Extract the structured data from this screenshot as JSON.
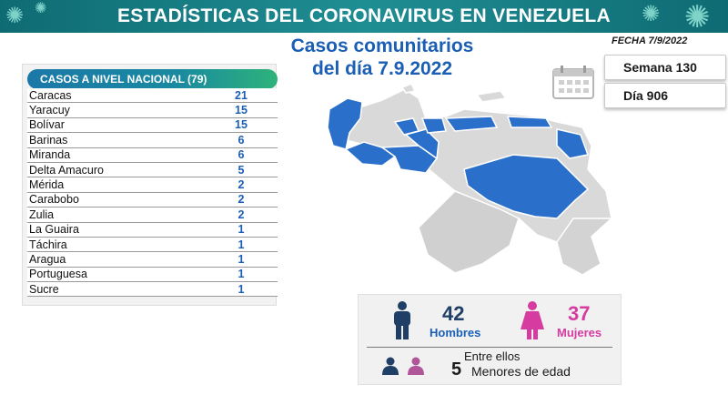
{
  "header": {
    "title": "ESTADÍSTICAS DEL CORONAVIRUS EN VENEZUELA"
  },
  "subtitle": {
    "line1": "Casos comunitarios",
    "line2": "del día 7.9.2022"
  },
  "fecha": "FECHA 7/9/2022",
  "semana": "Semana 130",
  "dia": "Día 906",
  "table": {
    "header": "CASOS A NIVEL NACIONAL  (79)",
    "rows": [
      {
        "name": "Caracas",
        "value": "21"
      },
      {
        "name": "Yaracuy",
        "value": "15"
      },
      {
        "name": "Bolívar",
        "value": "15"
      },
      {
        "name": "Barinas",
        "value": "6"
      },
      {
        "name": "Miranda",
        "value": "6"
      },
      {
        "name": "Delta Amacuro",
        "value": "5"
      },
      {
        "name": "Mérida",
        "value": "2"
      },
      {
        "name": "Carabobo",
        "value": "2"
      },
      {
        "name": "Zulia",
        "value": "2"
      },
      {
        "name": "La Guaira",
        "value": "1"
      },
      {
        "name": "Táchira",
        "value": "1"
      },
      {
        "name": "Aragua",
        "value": "1"
      },
      {
        "name": "Portuguesa",
        "value": "1"
      },
      {
        "name": "Sucre",
        "value": "1"
      }
    ]
  },
  "gender": {
    "hombres_count": "42",
    "hombres_label": "Hombres",
    "mujeres_count": "37",
    "mujeres_label": "Mujeres",
    "entre_ellos": "Entre ellos",
    "menores_count": "5",
    "menores_label": "Menores de edad"
  },
  "colors": {
    "header_bg": "#1a7f86",
    "accent_blue": "#1b5fb5",
    "map_highlight": "#2a6fc9",
    "map_base": "#d9d9d9",
    "male": "#1f3f66",
    "female": "#d63ba0"
  },
  "icons": [
    "virus-icon",
    "calendar-icon",
    "man-icon",
    "woman-icon"
  ]
}
